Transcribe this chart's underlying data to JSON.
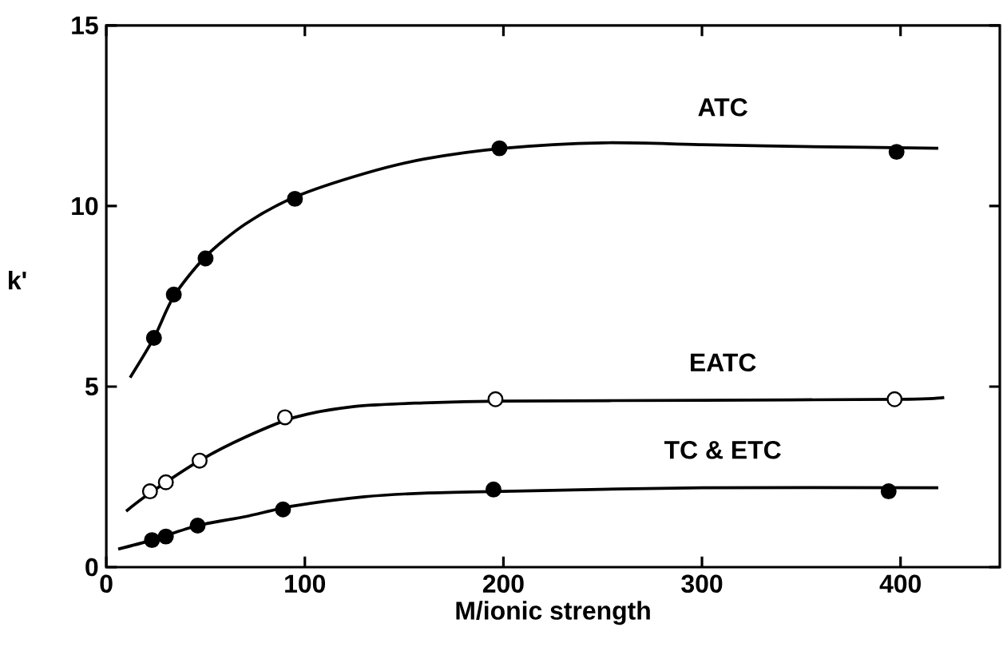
{
  "chart_data": {
    "type": "scatter",
    "xlabel": "M/ionic strength",
    "ylabel": "k'",
    "xlim": [
      0,
      450
    ],
    "ylim": [
      0,
      15
    ],
    "xticks": [
      0,
      100,
      200,
      300,
      400
    ],
    "yticks": [
      0,
      5,
      10,
      15
    ],
    "grid": false,
    "legend": false,
    "marker": "circle",
    "series": [
      {
        "type": "line",
        "name": "ATC",
        "color": "#000000",
        "marker": "none",
        "line_style": "solid",
        "x": [
          12,
          24,
          34,
          50,
          70,
          95,
          130,
          160,
          200,
          250,
          300,
          350,
          419
        ],
        "values": [
          5.25,
          6.35,
          7.5,
          8.6,
          9.5,
          10.25,
          10.9,
          11.3,
          11.6,
          11.75,
          11.7,
          11.65,
          11.6
        ]
      },
      {
        "type": "line",
        "name": "EATC",
        "color": "#000000",
        "marker": "none",
        "line_style": "solid",
        "x": [
          10,
          22,
          47,
          70,
          95,
          125,
          160,
          200,
          300,
          400,
          422
        ],
        "values": [
          1.55,
          2.05,
          2.95,
          3.6,
          4.15,
          4.45,
          4.55,
          4.6,
          4.62,
          4.65,
          4.7
        ]
      },
      {
        "type": "line",
        "name": "TC & ETC",
        "color": "#000000",
        "marker": "none",
        "line_style": "solid",
        "x": [
          6,
          23,
          46,
          70,
          95,
          130,
          160,
          200,
          300,
          419
        ],
        "values": [
          0.5,
          0.75,
          1.15,
          1.4,
          1.7,
          1.95,
          2.05,
          2.1,
          2.2,
          2.2
        ]
      },
      {
        "color": "#000000",
        "x": [
          24,
          34,
          50,
          95,
          198,
          398
        ],
        "values": [
          6.35,
          7.55,
          8.55,
          10.2,
          11.6,
          11.5
        ]
      },
      {
        "color": "#ffffff",
        "x": [
          22,
          30,
          47,
          90,
          196,
          397
        ],
        "values": [
          2.1,
          2.35,
          2.95,
          4.15,
          4.65,
          4.65
        ]
      },
      {
        "color": "#000000",
        "x": [
          23,
          30,
          46,
          89,
          195,
          394
        ],
        "values": [
          0.75,
          0.85,
          1.15,
          1.6,
          2.15,
          2.1
        ]
      }
    ]
  }
}
